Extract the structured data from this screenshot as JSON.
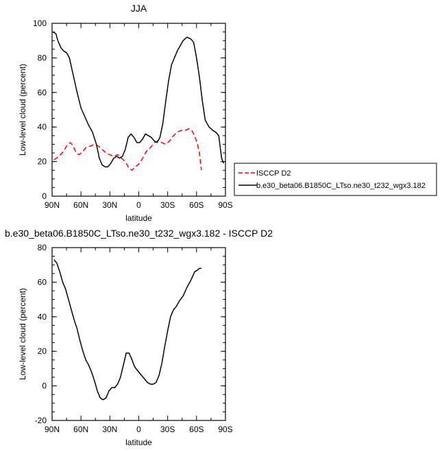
{
  "chart_data": [
    {
      "type": "line",
      "title": "JJA",
      "xlabel": "latitude",
      "ylabel": "Low-level cloud (percent)",
      "xlim": [
        90,
        -90
      ],
      "ylim": [
        0,
        100
      ],
      "xticks": [
        90,
        60,
        30,
        0,
        -30,
        -60,
        -90
      ],
      "xtick_labels": [
        "90N",
        "60N",
        "30N",
        "0",
        "30S",
        "60S",
        "90S"
      ],
      "yticks": [
        0,
        20,
        40,
        60,
        80,
        100
      ],
      "ytick_labels": [
        "0",
        "20",
        "40",
        "60",
        "80",
        "100"
      ],
      "legend": {
        "placement": "right",
        "entries": [
          "ISCCP D2",
          "b.e30_beta06.B1850C_LTso.ne30_t232_wgx3.182"
        ]
      },
      "series": [
        {
          "name": "ISCCP D2",
          "color": "#ff0000",
          "dash": "dashed",
          "x": [
            88,
            83,
            78,
            74,
            71,
            68,
            65,
            62,
            58,
            55,
            50,
            46,
            42,
            38,
            34,
            30,
            26,
            22,
            18,
            14,
            10,
            7,
            4,
            1,
            -2,
            -5,
            -8,
            -12,
            -16,
            -20,
            -24,
            -28,
            -32,
            -36,
            -40,
            -44,
            -48,
            -52,
            -55,
            -58,
            -61,
            -63,
            -65
          ],
          "y": [
            21,
            23,
            26,
            30,
            31,
            29,
            25,
            24,
            26,
            28,
            29,
            30,
            29,
            27,
            25,
            24,
            23,
            24,
            22,
            20,
            16,
            15,
            17,
            18,
            20,
            23,
            26,
            28,
            31,
            32,
            31,
            30,
            32,
            35,
            37,
            38,
            38,
            39,
            38,
            35,
            30,
            25,
            15
          ]
        },
        {
          "name": "b.e30_beta06.B1850C_LTso.ne30_t232_wgx3.182",
          "color": "#000000",
          "dash": "solid",
          "x": [
            89,
            86,
            84,
            81,
            78,
            75,
            72,
            68,
            64,
            60,
            56,
            52,
            48,
            44,
            41,
            38,
            35,
            32,
            29,
            26,
            23,
            20,
            17,
            14,
            11,
            8,
            5,
            2,
            -1,
            -4,
            -7,
            -10,
            -13,
            -16,
            -19,
            -22,
            -25,
            -28,
            -31,
            -34,
            -37,
            -40,
            -43,
            -46,
            -50,
            -54,
            -57,
            -60,
            -63,
            -66,
            -69,
            -71,
            -73,
            -75,
            -77,
            -80,
            -83,
            -86,
            -88
          ],
          "y": [
            95,
            94,
            90,
            86,
            84,
            83,
            80,
            70,
            60,
            51,
            46,
            41,
            37,
            30,
            22,
            18,
            17,
            17,
            19,
            22,
            23,
            22,
            23,
            27,
            34,
            36,
            34,
            31,
            31,
            33,
            36,
            35,
            34,
            32,
            31,
            34,
            42,
            55,
            67,
            76,
            80,
            84,
            87,
            90,
            92,
            91,
            89,
            80,
            69,
            55,
            44,
            42,
            40,
            39,
            38,
            37,
            35,
            22,
            19
          ]
        }
      ]
    },
    {
      "type": "line",
      "title": "b.e30_beta06.B1850C_LTso.ne30_t232_wgx3.182 - ISCCP D2",
      "xlabel": "latitude",
      "ylabel": "Low-level cloud (percent)",
      "xlim": [
        90,
        -90
      ],
      "ylim": [
        -20,
        80
      ],
      "xticks": [
        90,
        60,
        30,
        0,
        -30,
        -60,
        -90
      ],
      "xtick_labels": [
        "90N",
        "60N",
        "30N",
        "0",
        "30S",
        "60S",
        "90S"
      ],
      "yticks": [
        -20,
        0,
        20,
        40,
        60,
        80
      ],
      "ytick_labels": [
        "-20",
        "0",
        "20",
        "40",
        "60",
        "80"
      ],
      "series": [
        {
          "color": "#000000",
          "dash": "solid",
          "x": [
            88,
            85,
            82,
            79,
            76,
            73,
            70,
            67,
            64,
            61,
            58,
            55,
            52,
            49,
            46,
            43,
            40,
            37,
            34,
            31,
            28,
            25,
            22,
            19,
            16,
            13,
            10,
            7,
            5,
            3,
            0,
            -3,
            -6,
            -9,
            -12,
            -15,
            -18,
            -21,
            -24,
            -27,
            -30,
            -33,
            -36,
            -39,
            -42,
            -46,
            -50,
            -54,
            -58,
            -61,
            -63,
            -65
          ],
          "y": [
            73,
            71,
            66,
            60,
            56,
            50,
            44,
            38,
            33,
            26,
            20,
            15,
            12,
            8,
            3,
            -3,
            -7,
            -8,
            -7,
            -3,
            -1,
            -1,
            1,
            5,
            12,
            19,
            19,
            15,
            12,
            10,
            8,
            6,
            4,
            2,
            1,
            1,
            2,
            6,
            13,
            23,
            32,
            40,
            44,
            46,
            49,
            52,
            57,
            61,
            66,
            67,
            68,
            68
          ]
        }
      ]
    }
  ]
}
